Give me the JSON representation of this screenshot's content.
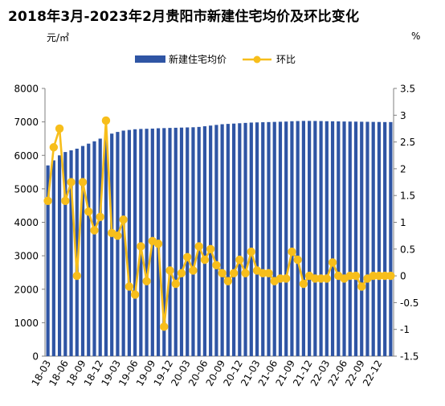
{
  "chart_data": {
    "type": "bar+line",
    "title": "2018年3月-2023年2月贵阳市新建住宅均价及环比变化",
    "y_left_unit": "元/㎡",
    "y_right_unit": "%",
    "y_left_ticks": [
      "0",
      "1000",
      "2000",
      "3000",
      "4000",
      "5000",
      "6000",
      "7000",
      "8000"
    ],
    "y_right_ticks": [
      "-1.5",
      "-1",
      "-0.5",
      "0",
      "0.5",
      "1",
      "1.5",
      "2",
      "2.5",
      "3",
      "3.5"
    ],
    "ylim_left": [
      0,
      8000
    ],
    "ylim_right": [
      -1.5,
      3.5
    ],
    "legend_position": "top-center",
    "x_tick_labels": [
      "18-03",
      "18-06",
      "18-09",
      "18-12",
      "19-03",
      "19-06",
      "19-09",
      "19-12",
      "20-03",
      "20-06",
      "20-09",
      "20-12",
      "21-03",
      "21-06",
      "21-09",
      "21-12",
      "22-03",
      "22-06",
      "22-09",
      "22-12"
    ],
    "x": [
      "18-03",
      "18-04",
      "18-05",
      "18-06",
      "18-07",
      "18-08",
      "18-09",
      "18-10",
      "18-11",
      "18-12",
      "19-01",
      "19-02",
      "19-03",
      "19-04",
      "19-05",
      "19-06",
      "19-07",
      "19-08",
      "19-09",
      "19-10",
      "19-11",
      "19-12",
      "20-01",
      "20-02",
      "20-03",
      "20-04",
      "20-05",
      "20-06",
      "20-07",
      "20-08",
      "20-09",
      "20-10",
      "20-11",
      "20-12",
      "21-01",
      "21-02",
      "21-03",
      "21-04",
      "21-05",
      "21-06",
      "21-07",
      "21-08",
      "21-09",
      "21-10",
      "21-11",
      "21-12",
      "22-01",
      "22-02",
      "22-03",
      "22-04",
      "22-05",
      "22-06",
      "22-07",
      "22-08",
      "22-09",
      "22-10",
      "22-11",
      "22-12",
      "23-01",
      "23-02"
    ],
    "series": [
      {
        "name": "新建住宅均价",
        "kind": "bar",
        "color": "#2F55A4",
        "values": [
          5700,
          5850,
          6000,
          6100,
          6150,
          6200,
          6280,
          6350,
          6420,
          6500,
          6580,
          6650,
          6700,
          6740,
          6760,
          6780,
          6790,
          6795,
          6800,
          6810,
          6815,
          6820,
          6825,
          6830,
          6835,
          6840,
          6850,
          6870,
          6890,
          6910,
          6930,
          6940,
          6950,
          6960,
          6970,
          6980,
          6985,
          6990,
          6995,
          7000,
          7005,
          7010,
          7020,
          7025,
          7030,
          7030,
          7028,
          7025,
          7020,
          7018,
          7015,
          7012,
          7010,
          7008,
          7005,
          7003,
          7000,
          6998,
          6995,
          6995
        ]
      },
      {
        "name": "环比",
        "kind": "line",
        "color": "#F7BE1B",
        "values": [
          1.4,
          2.4,
          2.75,
          1.4,
          1.75,
          0,
          1.75,
          1.2,
          0.85,
          1.1,
          2.9,
          0.8,
          0.75,
          1.05,
          -0.2,
          -0.35,
          0.55,
          -0.1,
          0.65,
          0.6,
          -0.95,
          0.1,
          -0.15,
          0.05,
          0.35,
          0.1,
          0.55,
          0.3,
          0.5,
          0.2,
          0.05,
          -0.1,
          0.05,
          0.3,
          0.05,
          0.45,
          0.1,
          0.05,
          0.05,
          -0.1,
          -0.05,
          -0.05,
          0.45,
          0.3,
          -0.15,
          0.0,
          -0.05,
          -0.05,
          -0.05,
          0.25,
          0.0,
          -0.05,
          0.0,
          0.0,
          -0.2,
          -0.05,
          0.0,
          0.0,
          0.0,
          0.0
        ]
      }
    ]
  }
}
